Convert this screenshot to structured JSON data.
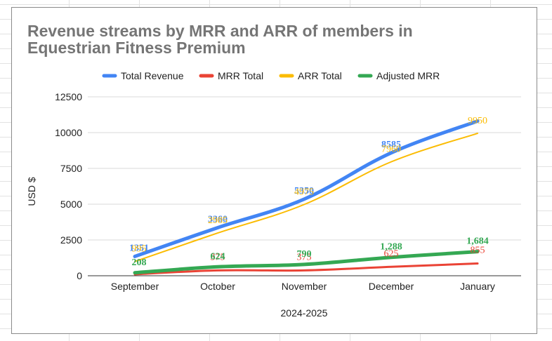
{
  "chart_data": {
    "type": "line",
    "title": "Revenue streams by MRR and ARR of members in Equestrian Fitness Premium",
    "xlabel": "2024-2025",
    "ylabel": "USD $",
    "categories": [
      "September",
      "October",
      "November",
      "December",
      "January"
    ],
    "ylim": [
      0,
      12500
    ],
    "yticks": [
      "0",
      "2500",
      "5000",
      "7500",
      "10000",
      "12500"
    ],
    "ytick_values": [
      0,
      2500,
      5000,
      7500,
      10000,
      12500
    ],
    "grid": true,
    "legend_position": "top",
    "series": [
      {
        "name": "Total Revenue",
        "color": "#4285f4",
        "values": [
          1351,
          3360,
          5350,
          8585,
          10805
        ],
        "labels": [
          "1351",
          "3360",
          "5350",
          "8585",
          ""
        ]
      },
      {
        "name": "MRR Total",
        "color": "#ea4335",
        "values": [
          100,
          375,
          375,
          625,
          855
        ],
        "labels": [
          "",
          "375",
          "375",
          "625",
          "855"
        ]
      },
      {
        "name": "ARR Total",
        "color": "#fbbc04",
        "values": [
          995,
          2985,
          4975,
          7960,
          9950
        ],
        "labels": [
          "995",
          "2985",
          "4975",
          "7960",
          "9950"
        ]
      },
      {
        "name": "Adjusted MRR",
        "color": "#34a853",
        "values": [
          208,
          624,
          790,
          1288,
          1684
        ],
        "labels": [
          "208",
          "624",
          "790",
          "1,288",
          "1,684"
        ]
      }
    ]
  }
}
